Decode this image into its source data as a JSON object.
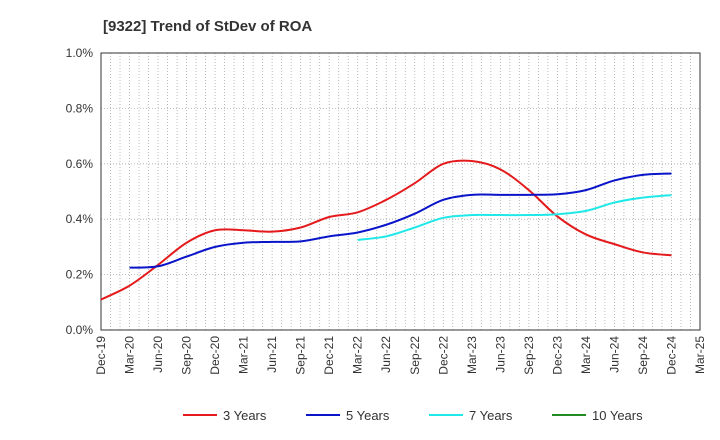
{
  "chart_data": {
    "type": "line",
    "title": "[9322]  Trend of StDev of ROA",
    "xlabel": "",
    "ylabel": "",
    "x": [
      "Dec-19",
      "Jan-20",
      "Feb-20",
      "Mar-20",
      "Apr-20",
      "May-20",
      "Jun-20",
      "Jul-20",
      "Aug-20",
      "Sep-20",
      "Oct-20",
      "Nov-20",
      "Dec-20",
      "Jan-21",
      "Feb-21",
      "Mar-21",
      "Apr-21",
      "May-21",
      "Jun-21",
      "Jul-21",
      "Aug-21",
      "Sep-21",
      "Oct-21",
      "Nov-21",
      "Dec-21",
      "Jan-22",
      "Feb-22",
      "Mar-22",
      "Apr-22",
      "May-22",
      "Jun-22",
      "Jul-22",
      "Aug-22",
      "Sep-22",
      "Oct-22",
      "Nov-22",
      "Dec-22",
      "Jan-23",
      "Feb-23",
      "Mar-23",
      "Apr-23",
      "May-23",
      "Jun-23",
      "Jul-23",
      "Aug-23",
      "Sep-23",
      "Oct-23",
      "Nov-23",
      "Dec-23",
      "Jan-24",
      "Feb-24",
      "Mar-24",
      "Apr-24",
      "May-24",
      "Jun-24",
      "Jul-24",
      "Aug-24",
      "Sep-24",
      "Oct-24",
      "Nov-24",
      "Dec-24",
      "Jan-25",
      "Feb-25",
      "Mar-25"
    ],
    "x_tick_labels": [
      "Dec-19",
      "Mar-20",
      "Jun-20",
      "Sep-20",
      "Dec-20",
      "Mar-21",
      "Jun-21",
      "Sep-21",
      "Dec-21",
      "Mar-22",
      "Jun-22",
      "Sep-22",
      "Dec-22",
      "Mar-23",
      "Jun-23",
      "Sep-23",
      "Dec-23",
      "Mar-24",
      "Jun-24",
      "Sep-24",
      "Dec-24",
      "Mar-25"
    ],
    "y_tick_labels": [
      "0.0%",
      "0.2%",
      "0.4%",
      "0.6%",
      "0.8%",
      "1.0%"
    ],
    "ylim": [
      0,
      1.0
    ],
    "y_unit": "%",
    "grid": true,
    "legend_position": "bottom",
    "series": [
      {
        "name": "3 Years",
        "color": "#e41a1c",
        "points": [
          [
            "Dec-19",
            0.11
          ],
          [
            "Mar-20",
            0.16
          ],
          [
            "Jun-20",
            0.235
          ],
          [
            "Sep-20",
            0.315
          ],
          [
            "Dec-20",
            0.36
          ],
          [
            "Mar-21",
            0.36
          ],
          [
            "Jun-21",
            0.355
          ],
          [
            "Sep-21",
            0.37
          ],
          [
            "Dec-21",
            0.408
          ],
          [
            "Mar-22",
            0.425
          ],
          [
            "Jun-22",
            0.47
          ],
          [
            "Sep-22",
            0.53
          ],
          [
            "Dec-22",
            0.6
          ],
          [
            "Mar-23",
            0.61
          ],
          [
            "Jun-23",
            0.58
          ],
          [
            "Sep-23",
            0.505
          ],
          [
            "Dec-23",
            0.41
          ],
          [
            "Mar-24",
            0.345
          ],
          [
            "Jun-24",
            0.31
          ],
          [
            "Sep-24",
            0.28
          ],
          [
            "Dec-24",
            0.27
          ]
        ]
      },
      {
        "name": "5 Years",
        "color": "#0a14c8",
        "points": [
          [
            "Mar-20",
            0.225
          ],
          [
            "Jun-20",
            0.23
          ],
          [
            "Sep-20",
            0.265
          ],
          [
            "Dec-20",
            0.3
          ],
          [
            "Mar-21",
            0.315
          ],
          [
            "Jun-21",
            0.318
          ],
          [
            "Sep-21",
            0.32
          ],
          [
            "Dec-21",
            0.338
          ],
          [
            "Mar-22",
            0.352
          ],
          [
            "Jun-22",
            0.38
          ],
          [
            "Sep-22",
            0.42
          ],
          [
            "Dec-22",
            0.47
          ],
          [
            "Mar-23",
            0.488
          ],
          [
            "Jun-23",
            0.488
          ],
          [
            "Sep-23",
            0.488
          ],
          [
            "Dec-23",
            0.49
          ],
          [
            "Mar-24",
            0.505
          ],
          [
            "Jun-24",
            0.54
          ],
          [
            "Sep-24",
            0.56
          ],
          [
            "Dec-24",
            0.565
          ]
        ]
      },
      {
        "name": "7 Years",
        "color": "#21e8e8",
        "points": [
          [
            "Mar-22",
            0.325
          ],
          [
            "Jun-22",
            0.338
          ],
          [
            "Sep-22",
            0.37
          ],
          [
            "Dec-22",
            0.405
          ],
          [
            "Mar-23",
            0.415
          ],
          [
            "Jun-23",
            0.415
          ],
          [
            "Sep-23",
            0.415
          ],
          [
            "Dec-23",
            0.418
          ],
          [
            "Mar-24",
            0.43
          ],
          [
            "Jun-24",
            0.46
          ],
          [
            "Sep-24",
            0.478
          ],
          [
            "Dec-24",
            0.487
          ]
        ]
      },
      {
        "name": "10 Years",
        "color": "#228b22",
        "points": []
      }
    ]
  }
}
